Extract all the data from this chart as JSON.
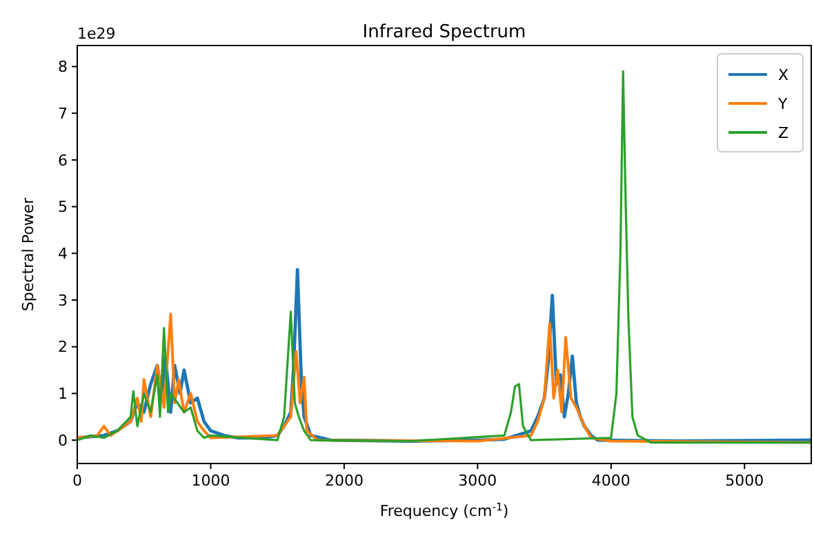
{
  "chart_data": {
    "type": "line",
    "title": "Infrared Spectrum",
    "xlabel": "Frequency (cm$^{-1}$)",
    "ylabel": "Spectral Power",
    "annotations": [
      "1e29"
    ],
    "xlim": [
      0,
      5500
    ],
    "xticks": [
      0,
      1000,
      2000,
      3000,
      4000,
      5000
    ],
    "ylim": [
      -0.5,
      8.45
    ],
    "yticks": [
      0,
      1,
      2,
      3,
      4,
      5,
      6,
      7,
      8
    ],
    "grid": false,
    "legend": "top right",
    "line_style": "solid",
    "marker": "none",
    "series": [
      {
        "name": "X",
        "color": "#1f77b4",
        "x": [
          0,
          200,
          300,
          400,
          450,
          500,
          550,
          600,
          630,
          660,
          700,
          730,
          770,
          800,
          850,
          900,
          950,
          1000,
          1100,
          1200,
          1400,
          1500,
          1550,
          1600,
          1620,
          1650,
          1680,
          1700,
          1750,
          1900,
          2500,
          3000,
          3200,
          3400,
          3450,
          3500,
          3530,
          3560,
          3590,
          3620,
          3650,
          3680,
          3710,
          3740,
          3770,
          3800,
          3850,
          3900,
          4500,
          5500
        ],
        "values": [
          0.05,
          0.1,
          0.2,
          0.4,
          0.8,
          0.6,
          1.2,
          1.6,
          0.9,
          1.8,
          0.6,
          1.6,
          1.0,
          1.5,
          0.8,
          0.9,
          0.4,
          0.2,
          0.1,
          0.05,
          0.05,
          0.1,
          0.3,
          0.6,
          1.5,
          3.65,
          1.2,
          0.5,
          0.1,
          0.0,
          -0.02,
          0.0,
          0.02,
          0.2,
          0.5,
          0.9,
          1.7,
          3.1,
          1.2,
          1.4,
          0.5,
          1.0,
          1.8,
          0.8,
          0.5,
          0.3,
          0.1,
          0.0,
          -0.02,
          0.0
        ]
      },
      {
        "name": "Y",
        "color": "#ff7f0e",
        "x": [
          0,
          150,
          200,
          250,
          400,
          450,
          480,
          500,
          550,
          600,
          650,
          700,
          730,
          760,
          800,
          850,
          900,
          950,
          1000,
          1500,
          1600,
          1640,
          1670,
          1700,
          1720,
          1800,
          3000,
          3400,
          3450,
          3500,
          3540,
          3570,
          3600,
          3630,
          3660,
          3700,
          3740,
          3800,
          3850,
          4000,
          5500
        ],
        "values": [
          0.05,
          0.1,
          0.3,
          0.1,
          0.4,
          0.9,
          0.4,
          1.3,
          0.5,
          1.6,
          0.7,
          2.7,
          0.8,
          1.3,
          0.6,
          1.0,
          0.4,
          0.2,
          0.05,
          0.1,
          0.5,
          1.9,
          0.8,
          1.35,
          0.2,
          0.0,
          -0.02,
          0.1,
          0.4,
          0.9,
          2.5,
          0.9,
          1.5,
          0.6,
          2.2,
          0.9,
          0.7,
          0.3,
          0.05,
          -0.02,
          -0.05
        ]
      },
      {
        "name": "Z",
        "color": "#2ca02c",
        "x": [
          0,
          100,
          200,
          300,
          400,
          420,
          450,
          500,
          550,
          600,
          620,
          650,
          680,
          700,
          750,
          800,
          850,
          900,
          950,
          1000,
          1500,
          1550,
          1600,
          1630,
          1660,
          1700,
          1750,
          2500,
          3200,
          3250,
          3280,
          3310,
          3340,
          3400,
          4000,
          4040,
          4070,
          4090,
          4110,
          4130,
          4160,
          4200,
          4300,
          5500
        ],
        "values": [
          0.0,
          0.1,
          0.05,
          0.2,
          0.5,
          1.05,
          0.3,
          1.0,
          0.6,
          1.4,
          0.5,
          2.4,
          0.6,
          1.0,
          0.8,
          0.6,
          0.7,
          0.2,
          0.05,
          0.1,
          0.0,
          0.5,
          2.75,
          0.8,
          0.5,
          0.2,
          0.0,
          -0.02,
          0.1,
          0.6,
          1.15,
          1.2,
          0.3,
          0.0,
          0.05,
          1.0,
          4.0,
          7.9,
          5.0,
          2.6,
          0.5,
          0.1,
          -0.05,
          -0.05
        ]
      }
    ]
  }
}
